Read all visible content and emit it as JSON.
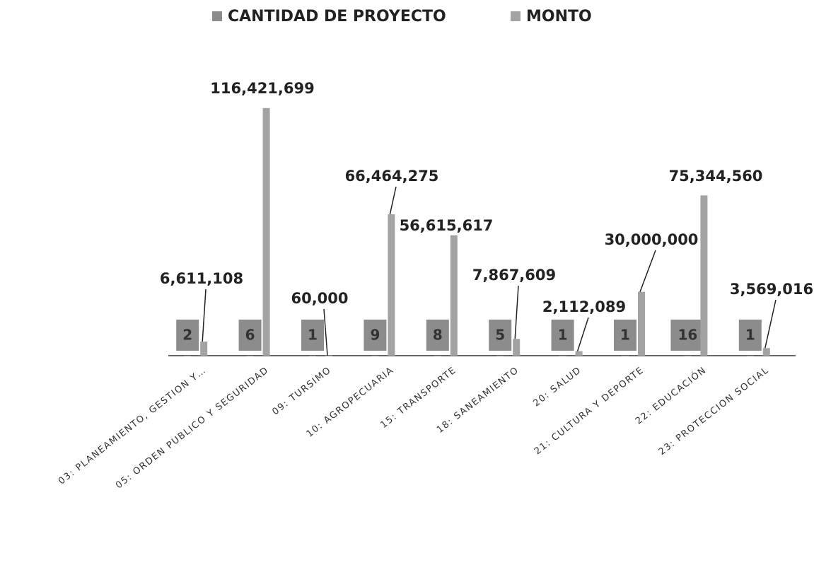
{
  "chart_data": {
    "type": "bar",
    "categories": [
      "03: PLANEAMIENTO, GESTION Y…",
      "05: ORDEN PUBLICO Y SEGURIDAD",
      "09: TURSIMO",
      "10: AGROPECUARIA",
      "15: TRANSPORTE",
      "18: SANEAMIENTO",
      "20: SALUD",
      "21: CULTURA Y DEPORTE",
      "22: EDUCACIÓN",
      "23: PROTECCION SOCIAL"
    ],
    "series": [
      {
        "name": "CANTIDAD  DE PROYECTO",
        "color": "#8c8c8c",
        "values": [
          2,
          6,
          1,
          9,
          8,
          5,
          1,
          1,
          16,
          1
        ]
      },
      {
        "name": "MONTO",
        "color": "#a3a3a3",
        "values": [
          6611108,
          116421699,
          60000,
          66464275,
          56615617,
          7867609,
          2112089,
          30000000,
          75344560,
          3569016
        ],
        "value_labels": [
          "6,611,108",
          "116,421,699",
          "60,000",
          "66,464,275",
          "56,615,617",
          "7,867,609",
          "2,112,089",
          "30,000,000",
          "75,344,560",
          "3,569,016"
        ]
      }
    ],
    "ylim": [
      0,
      120000000
    ],
    "legend": "top"
  }
}
